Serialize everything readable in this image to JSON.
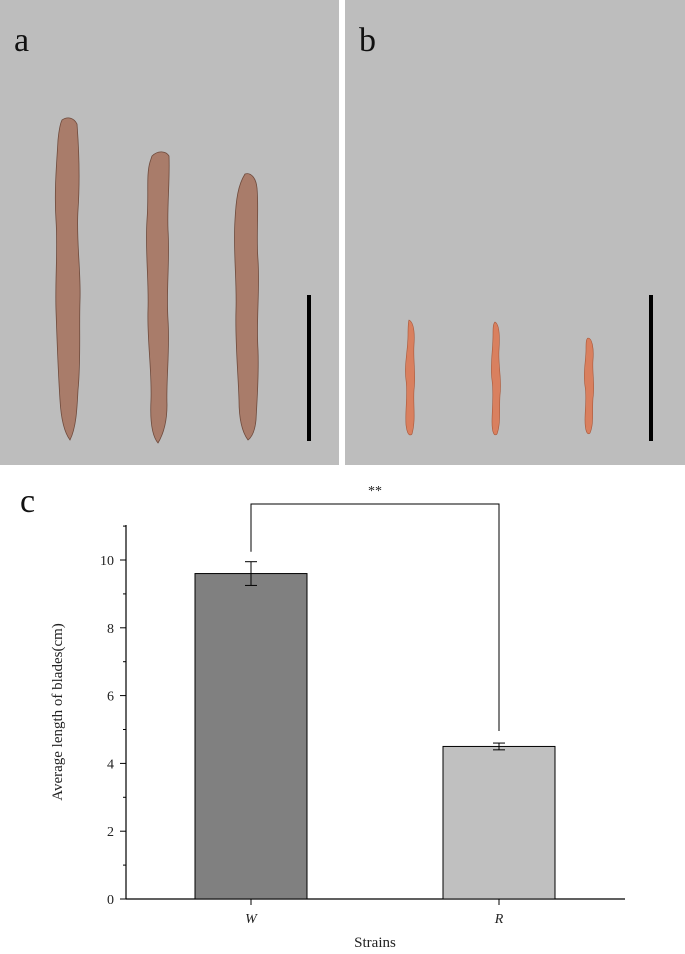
{
  "panels": {
    "a": {
      "letter": "a"
    },
    "b": {
      "letter": "b"
    },
    "c": {
      "letter": "c"
    }
  },
  "colors": {
    "photo_background": "#bdbdbd",
    "blade_a": "#a97c6a",
    "blade_b": "#d9805f",
    "bar_W": "#808080",
    "bar_R": "#c0c0c0"
  },
  "chart_data": {
    "type": "bar",
    "categories": [
      "W",
      "R"
    ],
    "values": [
      9.6,
      4.5
    ],
    "errors": [
      0.35,
      0.1
    ],
    "xlabel": "Strains",
    "ylabel": "Average length of blades(cm)",
    "ylim": [
      0,
      11
    ],
    "yticks": [
      0,
      2,
      4,
      6,
      8,
      10
    ],
    "significance": {
      "between": [
        "W",
        "R"
      ],
      "label": "**"
    },
    "grid": false
  }
}
